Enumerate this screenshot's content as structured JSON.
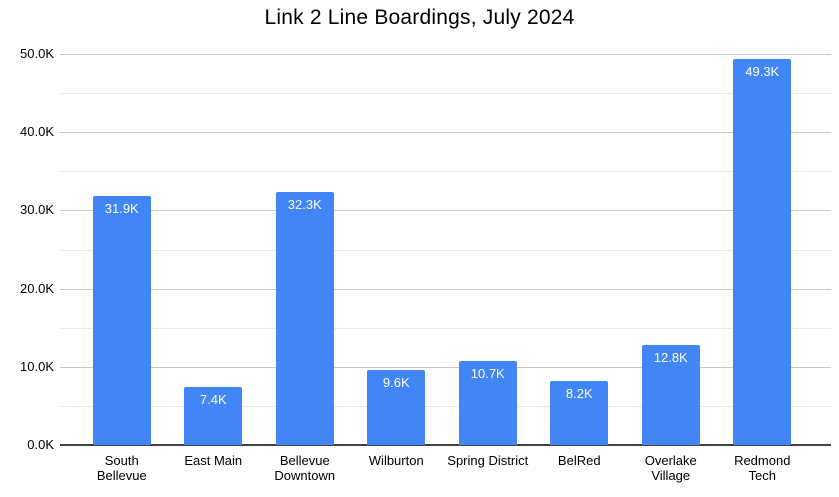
{
  "chart_data": {
    "type": "bar",
    "title": "Link 2 Line Boardings, July 2024",
    "categories": [
      "South Bellevue",
      "East Main",
      "Bellevue Downtown",
      "Wilburton",
      "Spring District",
      "BelRed",
      "Overlake Village",
      "Redmond Tech"
    ],
    "values": [
      31.9,
      7.4,
      32.3,
      9.6,
      10.7,
      8.2,
      12.8,
      49.3
    ],
    "value_labels": [
      "31.9K",
      "7.4K",
      "32.3K",
      "9.6K",
      "10.7K",
      "8.2K",
      "12.8K",
      "49.3K"
    ],
    "xlabel": "",
    "ylabel": "",
    "ylim": [
      0,
      50
    ],
    "y_major_step": 10,
    "y_minor_step": 5,
    "y_tick_labels": [
      "0.0K",
      "10.0K",
      "20.0K",
      "30.0K",
      "40.0K",
      "50.0K"
    ],
    "grid": "on",
    "legend_position": "none",
    "bar_color": "#4285f4",
    "value_label_color": "#ffffff",
    "major_grid_color": "#c9c9c9",
    "minor_grid_color": "#e9e9e9",
    "axis_color": "#424242",
    "text_color": "#000000"
  }
}
